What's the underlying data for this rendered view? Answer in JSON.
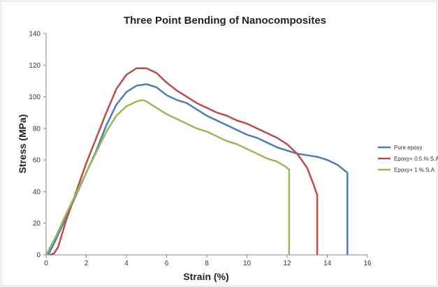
{
  "chart_data": {
    "type": "line",
    "title": "Three Point Bending of Nanocomposites",
    "xlabel": "Strain (%)",
    "ylabel": "Stress (MPa)",
    "xlim": [
      0,
      16
    ],
    "ylim": [
      0,
      140
    ],
    "xticks": [
      "0",
      "2",
      "4",
      "6",
      "8",
      "10",
      "12",
      "14",
      "16"
    ],
    "yticks": [
      "0",
      "20",
      "40",
      "60",
      "80",
      "100",
      "120",
      "140"
    ],
    "grid": false,
    "legend_position": "right",
    "series": [
      {
        "name": "Pure epoxy",
        "color": "#4a7ebb",
        "x": [
          0.1,
          0.5,
          1.0,
          1.5,
          2.0,
          2.5,
          3.0,
          3.5,
          4.0,
          4.5,
          5.0,
          5.5,
          6.0,
          6.5,
          7.0,
          7.5,
          8.0,
          8.5,
          9.0,
          9.5,
          10.0,
          10.5,
          11.0,
          11.5,
          12.0,
          12.5,
          13.0,
          13.5,
          14.0,
          14.5,
          14.9,
          15.0,
          15.0
        ],
        "y": [
          0,
          10,
          24,
          38,
          52,
          66,
          82,
          95,
          103,
          107,
          108,
          106,
          101,
          98,
          96,
          92,
          88,
          85,
          82,
          79,
          76,
          74,
          71,
          68,
          66,
          64,
          63,
          62,
          60,
          57,
          53,
          52,
          0
        ]
      },
      {
        "name": "Epoxy+ 0.5 % S.A",
        "color": "#be4b48",
        "x": [
          0.2,
          0.4,
          0.6,
          1.0,
          1.5,
          2.0,
          2.5,
          3.0,
          3.5,
          4.0,
          4.5,
          5.0,
          5.5,
          6.0,
          6.5,
          7.0,
          7.5,
          8.0,
          8.5,
          9.0,
          9.5,
          10.0,
          10.5,
          11.0,
          11.5,
          12.0,
          12.5,
          13.0,
          13.3,
          13.5,
          13.5
        ],
        "y": [
          0,
          1,
          5,
          22,
          40,
          58,
          74,
          90,
          105,
          114,
          118,
          118,
          115,
          109,
          104,
          100,
          96,
          93,
          90,
          88,
          85,
          83,
          80,
          77,
          74,
          70,
          64,
          55,
          45,
          38,
          0
        ]
      },
      {
        "name": "Epoxy+ 1 % S.A",
        "color": "#98b954",
        "x": [
          0.0,
          0.5,
          1.0,
          1.5,
          2.0,
          2.5,
          3.0,
          3.5,
          4.0,
          4.5,
          4.8,
          5.0,
          5.5,
          6.0,
          6.5,
          7.0,
          7.5,
          8.0,
          8.5,
          9.0,
          9.5,
          10.0,
          10.5,
          11.0,
          11.5,
          11.9,
          12.1,
          12.1
        ],
        "y": [
          0,
          12,
          26,
          39,
          52,
          65,
          78,
          88,
          94,
          97,
          98,
          97,
          93,
          89,
          86,
          83,
          80,
          78,
          75,
          72,
          70,
          67,
          64,
          61,
          59,
          56,
          54,
          0
        ]
      }
    ]
  }
}
